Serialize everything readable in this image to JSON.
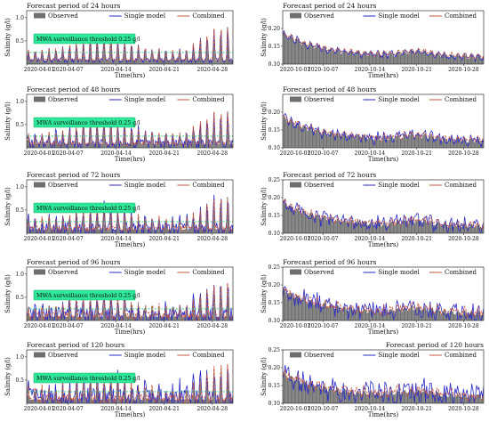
{
  "colors": {
    "observed": "#6e6e6e",
    "single": "#2a2ac8",
    "combined": "#c8553c",
    "threshold_box": "#2ee89a",
    "threshold_line": "#26c67f"
  },
  "legend": {
    "observed": "Observed",
    "single": "Single model",
    "combined": "Combined"
  },
  "chart_data": [
    {
      "type": "bar+line",
      "title": "Forecast period of 24 hours",
      "title_align": "left",
      "ylabel": "Salinity (g/l)",
      "xlabel": "Time(hrs)",
      "ylim": [
        0,
        1.15
      ],
      "yticks": [
        0.5,
        1.0
      ],
      "yticklabels": [
        "0.5",
        "1.0"
      ],
      "xticklabels": [
        "2020-04-01",
        "2020-04-07",
        "2020-04-14",
        "2020-04-21",
        "2020-04-28"
      ],
      "xlim_days": [
        1,
        31
      ],
      "threshold": {
        "value": 0.25,
        "label": "MWA surveillance threshold 0.25 g/l"
      },
      "series": [
        {
          "name": "Observed"
        },
        {
          "name": "Single model"
        },
        {
          "name": "Combined"
        }
      ]
    },
    {
      "type": "bar+line",
      "title": "Forecast period of 24 hours",
      "title_align": "left",
      "ylabel": "Salinity (g/l)",
      "xlabel": "Time(hrs)",
      "ylim": [
        0.1,
        0.25
      ],
      "yticks": [
        0.1,
        0.15,
        0.2
      ],
      "yticklabels": [
        "0.10",
        "0.15",
        "0.20"
      ],
      "xticklabels": [
        "2020-10-01",
        "2020-10-07",
        "2020-10-14",
        "2020-10-21",
        "2020-10-28"
      ],
      "xlim_days": [
        1,
        31
      ],
      "series": [
        {
          "name": "Observed"
        },
        {
          "name": "Single model"
        },
        {
          "name": "Combined"
        }
      ]
    },
    {
      "type": "bar+line",
      "title": "Forecast period of 48 hours",
      "title_align": "left",
      "ylabel": "Salinity (g/l)",
      "xlabel": "Time(hrs)",
      "ylim": [
        0,
        1.15
      ],
      "yticks": [
        0.5,
        1.0
      ],
      "yticklabels": [
        "0.5",
        "1.0"
      ],
      "xticklabels": [
        "2020-04-01",
        "2020-04-07",
        "2020-04-14",
        "2020-04-21",
        "2020-04-28"
      ],
      "xlim_days": [
        1,
        31
      ],
      "threshold": {
        "value": 0.25,
        "label": "MWA surveillance threshold 0.25 g/l"
      },
      "series": [
        {
          "name": "Observed"
        },
        {
          "name": "Single model"
        },
        {
          "name": "Combined"
        }
      ]
    },
    {
      "type": "bar+line",
      "title": "Forecast period of 48 hours",
      "title_align": "left",
      "ylabel": "Salinity (g/l)",
      "xlabel": "Time(hrs)",
      "ylim": [
        0.1,
        0.25
      ],
      "yticks": [
        0.1,
        0.15,
        0.2
      ],
      "yticklabels": [
        "0.10",
        "0.15",
        "0.20"
      ],
      "xticklabels": [
        "2020-10-01",
        "2020-10-07",
        "2020-10-14",
        "2020-10-21",
        "2020-10-28"
      ],
      "xlim_days": [
        1,
        31
      ],
      "series": [
        {
          "name": "Observed"
        },
        {
          "name": "Single model"
        },
        {
          "name": "Combined"
        }
      ]
    },
    {
      "type": "bar+line",
      "title": "Forecast period of 72 hours",
      "title_align": "left",
      "ylabel": "Salinity (g/l)",
      "xlabel": "Time(hrs)",
      "ylim": [
        0,
        1.15
      ],
      "yticks": [
        0.5,
        1.0
      ],
      "yticklabels": [
        "0.5",
        "1.0"
      ],
      "xticklabels": [
        "2020-04-01",
        "2020-04-07",
        "2020-04-14",
        "2020-04-21",
        "2020-04-28"
      ],
      "xlim_days": [
        1,
        31
      ],
      "threshold": {
        "value": 0.25,
        "label": "MWA surveillance threshold 0.25 g/l"
      },
      "series": [
        {
          "name": "Observed"
        },
        {
          "name": "Single model"
        },
        {
          "name": "Combined"
        }
      ]
    },
    {
      "type": "bar+line",
      "title": "Forecast period of 72 hours",
      "title_align": "left",
      "ylabel": "Salinity (g/l)",
      "xlabel": "Time(hrs)",
      "ylim": [
        0.1,
        0.25
      ],
      "yticks": [
        0.1,
        0.15,
        0.2,
        0.25
      ],
      "yticklabels": [
        "0.10",
        "0.15",
        "0.20",
        "0.25"
      ],
      "xticklabels": [
        "2020-10-01",
        "2020-10-07",
        "2020-10-14",
        "2020-10-21",
        "2020-10-28"
      ],
      "xlim_days": [
        1,
        31
      ],
      "series": [
        {
          "name": "Observed"
        },
        {
          "name": "Single model"
        },
        {
          "name": "Combined"
        }
      ]
    },
    {
      "type": "bar+line",
      "title": "Forecast period of 96 hours",
      "title_align": "left",
      "ylabel": "Salinity (g/l)",
      "xlabel": "Time(hrs)",
      "ylim": [
        0,
        1.15
      ],
      "yticks": [
        0.5,
        1.0
      ],
      "yticklabels": [
        "0.5",
        "1.0"
      ],
      "xticklabels": [
        "2020-04-01",
        "2020-04-07",
        "2020-04-14",
        "2020-04-21",
        "2020-04-28"
      ],
      "xlim_days": [
        1,
        31
      ],
      "threshold": {
        "value": 0.25,
        "label": "MWA surveillance threshold 0.25 g/l"
      },
      "series": [
        {
          "name": "Observed"
        },
        {
          "name": "Single model"
        },
        {
          "name": "Combined"
        }
      ]
    },
    {
      "type": "bar+line",
      "title": "Forecast period of 96 hours",
      "title_align": "left",
      "ylabel": "Salinity (g/l)",
      "xlabel": "Time(hrs)",
      "ylim": [
        0.1,
        0.25
      ],
      "yticks": [
        0.1,
        0.15,
        0.2,
        0.25
      ],
      "yticklabels": [
        "0.10",
        "0.15",
        "0.20",
        "0.25"
      ],
      "xticklabels": [
        "2020-10-01",
        "2020-10-07",
        "2020-10-14",
        "2020-10-21",
        "2020-10-28"
      ],
      "xlim_days": [
        1,
        31
      ],
      "series": [
        {
          "name": "Observed"
        },
        {
          "name": "Single model"
        },
        {
          "name": "Combined"
        }
      ]
    },
    {
      "type": "bar+line",
      "title": "Forecast period of 120 hours",
      "title_align": "left",
      "ylabel": "Salinity (g/l)",
      "xlabel": "Time(hrs)",
      "ylim": [
        0,
        1.15
      ],
      "yticks": [
        0.5,
        1.0
      ],
      "yticklabels": [
        "0.5",
        "1.0"
      ],
      "xticklabels": [
        "2020-04-01",
        "2020-04-07",
        "2020-04-14",
        "2020-04-21",
        "2020-04-28"
      ],
      "xlim_days": [
        1,
        31
      ],
      "threshold": {
        "value": 0.25,
        "label": "MWA surveillance threshold 0.25 g/l"
      },
      "series": [
        {
          "name": "Observed"
        },
        {
          "name": "Single model"
        },
        {
          "name": "Combined"
        }
      ]
    },
    {
      "type": "bar+line",
      "title": "Forecast period of 120 hours",
      "title_align": "right",
      "ylabel": "Salinity (g/l)",
      "xlabel": "Time(hrs)",
      "ylim": [
        0.1,
        0.25
      ],
      "yticks": [
        0.1,
        0.15,
        0.2,
        0.25
      ],
      "yticklabels": [
        "0.10",
        "0.15",
        "0.20",
        "0.25"
      ],
      "xticklabels": [
        "2020-10-01",
        "2020-10-07",
        "2020-10-14",
        "2020-10-21",
        "2020-10-28"
      ],
      "xlim_days": [
        1,
        31
      ],
      "series": [
        {
          "name": "Observed"
        },
        {
          "name": "Single model"
        },
        {
          "name": "Combined"
        }
      ]
    }
  ]
}
